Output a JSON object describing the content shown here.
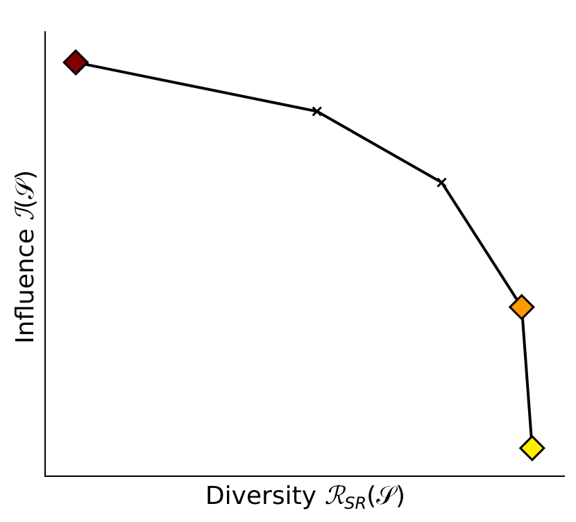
{
  "chart_data": {
    "type": "line",
    "title": "",
    "xlabel": {
      "prefix": "Diversity ",
      "symbol": "ℛ",
      "subscript": "SR",
      "argument": "(𝒮)"
    },
    "ylabel": {
      "prefix": "Influence ",
      "symbol": "ℐ",
      "argument": "(𝒮)"
    },
    "xlim": [
      0,
      1
    ],
    "ylim": [
      0,
      1
    ],
    "ticks": "none",
    "grid": false,
    "legend": "none",
    "series": [
      {
        "points": [
          {
            "x": 0.059,
            "y": 0.93,
            "marker": "diamond",
            "color": "#800000"
          },
          {
            "x": 0.523,
            "y": 0.82,
            "marker": "x",
            "color": "#000000"
          },
          {
            "x": 0.763,
            "y": 0.66,
            "marker": "x",
            "color": "#000000"
          },
          {
            "x": 0.917,
            "y": 0.38,
            "marker": "diamond",
            "color": "#FF9900"
          },
          {
            "x": 0.937,
            "y": 0.063,
            "marker": "diamond",
            "color": "#FFEE00"
          }
        ]
      }
    ]
  }
}
